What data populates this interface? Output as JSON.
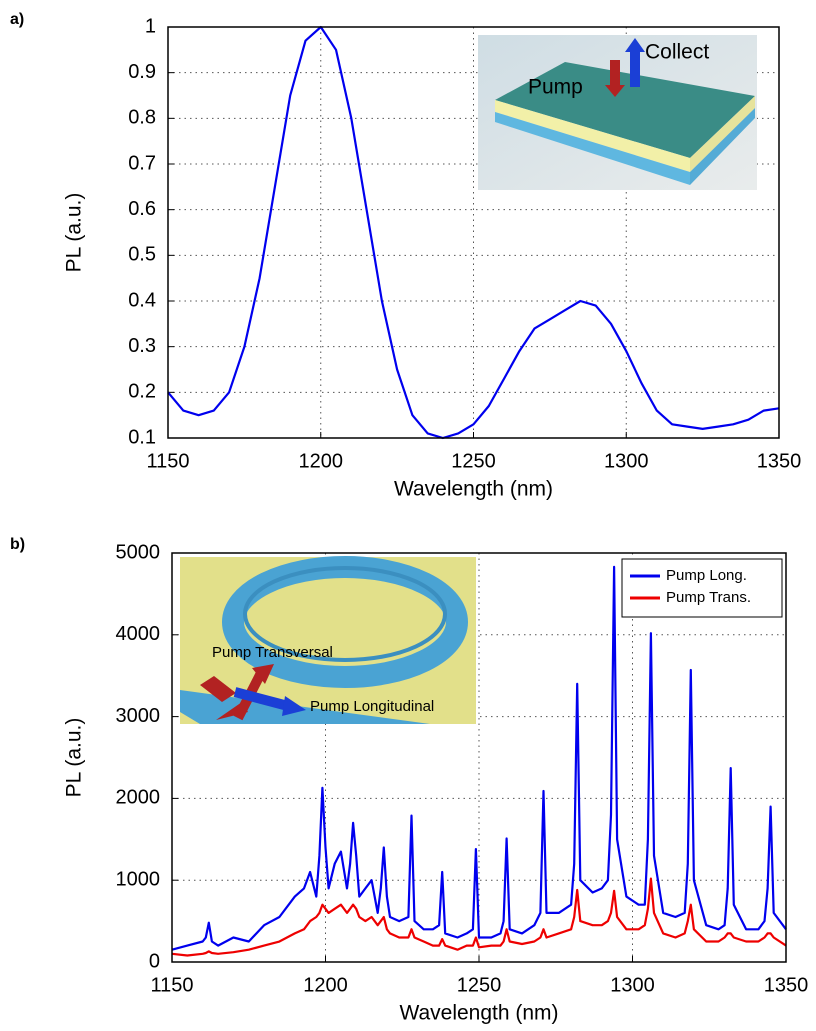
{
  "chart_data": [
    {
      "type": "line",
      "panel_label": "a)",
      "xlabel": "Wavelength (nm)",
      "ylabel": "PL (a.u.)",
      "inset_labels": [
        "Collect",
        "Pump"
      ],
      "x": [
        1150,
        1155,
        1160,
        1165,
        1170,
        1175,
        1180,
        1185,
        1190,
        1195,
        1200,
        1205,
        1210,
        1215,
        1220,
        1225,
        1230,
        1235,
        1240,
        1245,
        1250,
        1255,
        1260,
        1265,
        1270,
        1275,
        1280,
        1285,
        1290,
        1295,
        1300,
        1305,
        1310,
        1315,
        1320,
        1325,
        1330,
        1335,
        1340,
        1345,
        1350
      ],
      "values": [
        0.2,
        0.16,
        0.15,
        0.16,
        0.2,
        0.3,
        0.45,
        0.65,
        0.85,
        0.97,
        1.0,
        0.95,
        0.8,
        0.6,
        0.4,
        0.25,
        0.15,
        0.11,
        0.1,
        0.11,
        0.13,
        0.17,
        0.23,
        0.29,
        0.34,
        0.36,
        0.38,
        0.4,
        0.39,
        0.35,
        0.29,
        0.22,
        0.16,
        0.13,
        0.125,
        0.12,
        0.125,
        0.13,
        0.14,
        0.16,
        0.165
      ],
      "color": "#0000ee",
      "xlim": [
        1150,
        1350
      ],
      "xticks": [
        1150,
        1200,
        1250,
        1300,
        1350
      ],
      "ylim": [
        0.1,
        1
      ],
      "yticks": [
        0.1,
        0.2,
        0.3,
        0.4,
        0.5,
        0.6,
        0.7,
        0.8,
        0.9,
        1
      ],
      "grid": true
    },
    {
      "type": "line",
      "panel_label": "b)",
      "xlabel": "Wavelength (nm)",
      "ylabel": "PL (a.u.)",
      "inset_labels": [
        "Pump Transversal",
        "Pump Longitudinal"
      ],
      "x": [
        1150,
        1155,
        1160,
        1161,
        1162,
        1163,
        1165,
        1170,
        1175,
        1180,
        1185,
        1190,
        1193,
        1195,
        1197,
        1198,
        1199,
        1200,
        1201,
        1203,
        1205,
        1207,
        1208,
        1209,
        1210,
        1211,
        1213,
        1215,
        1217,
        1218,
        1219,
        1220,
        1221,
        1224,
        1227,
        1228,
        1229,
        1232,
        1235,
        1237,
        1238,
        1239,
        1243,
        1246,
        1248,
        1249,
        1250,
        1254,
        1257,
        1258,
        1259,
        1260,
        1264,
        1268,
        1270,
        1271,
        1272,
        1276,
        1280,
        1281,
        1282,
        1283,
        1287,
        1290,
        1292,
        1293,
        1294,
        1295,
        1298,
        1302,
        1304,
        1305,
        1306,
        1307,
        1310,
        1314,
        1317,
        1318,
        1319,
        1320,
        1324,
        1328,
        1330,
        1331,
        1332,
        1333,
        1337,
        1341,
        1343,
        1344,
        1345,
        1346,
        1350
      ],
      "series": [
        {
          "name": "Pump Long.",
          "color": "#0000ee",
          "values": [
            150,
            200,
            250,
            300,
            480,
            250,
            200,
            300,
            250,
            450,
            550,
            800,
            900,
            1100,
            800,
            1300,
            2130,
            1400,
            900,
            1200,
            1350,
            900,
            1200,
            1700,
            1300,
            800,
            900,
            1000,
            600,
            900,
            1400,
            800,
            550,
            500,
            550,
            1790,
            500,
            400,
            400,
            450,
            1100,
            350,
            300,
            350,
            400,
            1380,
            300,
            300,
            350,
            500,
            1510,
            400,
            350,
            450,
            600,
            2090,
            600,
            600,
            700,
            1200,
            3400,
            1000,
            850,
            900,
            1000,
            1800,
            4830,
            1500,
            800,
            700,
            700,
            1500,
            4020,
            1300,
            600,
            550,
            600,
            1200,
            3570,
            1000,
            450,
            400,
            450,
            900,
            2370,
            700,
            400,
            400,
            500,
            900,
            1900,
            600,
            400
          ]
        },
        {
          "name": "Pump Trans.",
          "color": "#ee0000",
          "values": [
            100,
            80,
            100,
            110,
            130,
            110,
            100,
            120,
            150,
            200,
            250,
            350,
            400,
            500,
            550,
            600,
            700,
            650,
            600,
            650,
            700,
            600,
            650,
            700,
            650,
            550,
            500,
            550,
            450,
            500,
            550,
            400,
            350,
            300,
            300,
            400,
            300,
            250,
            200,
            200,
            280,
            200,
            150,
            200,
            200,
            300,
            180,
            200,
            200,
            250,
            400,
            250,
            220,
            250,
            300,
            400,
            300,
            350,
            400,
            550,
            880,
            500,
            450,
            450,
            500,
            600,
            870,
            550,
            400,
            400,
            450,
            650,
            1020,
            600,
            350,
            300,
            350,
            500,
            700,
            400,
            250,
            250,
            300,
            350,
            350,
            300,
            250,
            250,
            300,
            350,
            350,
            300,
            200
          ]
        }
      ],
      "xlim": [
        1150,
        1350
      ],
      "xticks": [
        1150,
        1200,
        1250,
        1300,
        1350
      ],
      "ylim": [
        0,
        5000
      ],
      "yticks": [
        0,
        1000,
        2000,
        3000,
        4000,
        5000
      ],
      "grid": true,
      "legend": "upper right"
    }
  ]
}
